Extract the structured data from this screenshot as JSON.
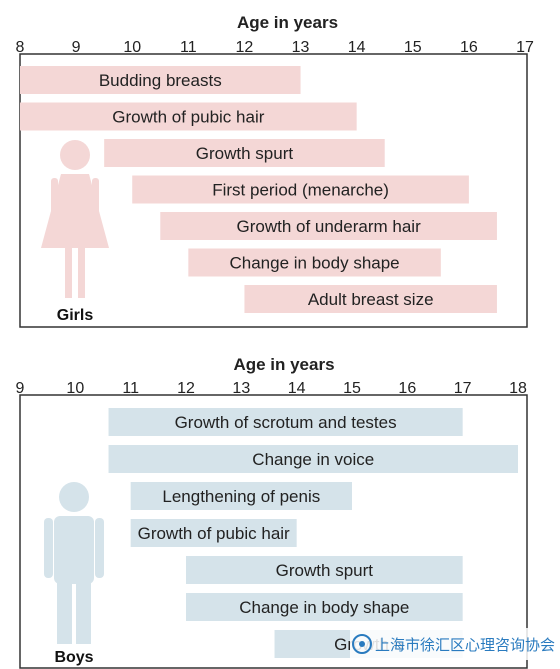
{
  "chart_data": [
    {
      "type": "range-bar",
      "group_label": "Girls",
      "axis_title": "Age in years",
      "ticks": [
        8,
        9,
        10,
        11,
        12,
        13,
        14,
        15,
        16,
        17
      ],
      "bar_color": "#f4d7d6",
      "figure_color": "#f4d7d6",
      "bars": [
        {
          "label": "Budding breasts",
          "start": 8.0,
          "end": 13.0
        },
        {
          "label": "Growth of pubic hair",
          "start": 8.0,
          "end": 14.0
        },
        {
          "label": "Growth spurt",
          "start": 9.5,
          "end": 14.5
        },
        {
          "label": "First period (menarche)",
          "start": 10.0,
          "end": 16.0
        },
        {
          "label": "Growth of underarm hair",
          "start": 10.5,
          "end": 16.5
        },
        {
          "label": "Change in body shape",
          "start": 11.0,
          "end": 15.5
        },
        {
          "label": "Adult breast size",
          "start": 12.0,
          "end": 16.5
        }
      ]
    },
    {
      "type": "range-bar",
      "group_label": "Boys",
      "axis_title": "Age in years",
      "ticks": [
        9,
        10,
        11,
        12,
        13,
        14,
        15,
        16,
        17,
        18
      ],
      "bar_color": "#d5e3ea",
      "figure_color": "#d5e3ea",
      "bars": [
        {
          "label": "Growth of scrotum and testes",
          "start": 10.6,
          "end": 17.0
        },
        {
          "label": "Change in voice",
          "start": 10.6,
          "end": 18.0
        },
        {
          "label": "Lengthening of penis",
          "start": 11.0,
          "end": 15.0
        },
        {
          "label": "Growth of pubic hair",
          "start": 11.0,
          "end": 14.0
        },
        {
          "label": "Growth spurt",
          "start": 12.0,
          "end": 17.0
        },
        {
          "label": "Change in body shape",
          "start": 12.0,
          "end": 17.0
        },
        {
          "label": "Growth o",
          "start": 13.6,
          "end": 17.0
        }
      ]
    }
  ],
  "watermark": {
    "text": "上海市徐汇区心理咨询协会"
  }
}
